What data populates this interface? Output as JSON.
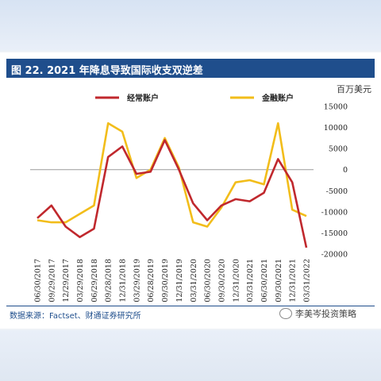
{
  "header": {
    "title": "图 22. 2021 年降息导致国际收支双逆差"
  },
  "footer": {
    "source": "数据来源：Factset、财通证券研究所",
    "watermark": "李美岑投资策略"
  },
  "colors": {
    "current_account": "#c0282d",
    "financial_account": "#f2bd1a",
    "title_bar": "#1f4e8c"
  },
  "chart_data": {
    "type": "line",
    "unit": "百万美元",
    "categories": [
      "06/30/2017",
      "09/29/2017",
      "12/29/2017",
      "03/29/2018",
      "06/29/2018",
      "09/28/2018",
      "12/31/2018",
      "03/29/2019",
      "06/28/2019",
      "09/30/2019",
      "12/31/2019",
      "03/31/2020",
      "06/30/2020",
      "09/30/2020",
      "12/31/2020",
      "03/31/2021",
      "06/30/2021",
      "09/30/2021",
      "12/31/2021",
      "03/31/2022"
    ],
    "ylim": [
      -20000,
      15000
    ],
    "yticks": [
      15000,
      10000,
      5000,
      0,
      -5000,
      -10000,
      -15000,
      -20000
    ],
    "grid": false,
    "legend_position": "top",
    "series": [
      {
        "name": "经常账户",
        "values": [
          -11500,
          -8500,
          -13500,
          -16000,
          -14000,
          3000,
          5500,
          -1000,
          -500,
          7000,
          0,
          -8000,
          -12000,
          -8500,
          -7000,
          -7500,
          -5500,
          2500,
          -3000,
          -18500
        ]
      },
      {
        "name": "金融账户",
        "values": [
          -12000,
          -12500,
          -12500,
          -10500,
          -8500,
          11000,
          9000,
          -2000,
          0,
          7500,
          500,
          -12500,
          -13500,
          -9000,
          -3000,
          -2500,
          -3500,
          11000,
          -9500,
          -11000
        ]
      }
    ]
  }
}
